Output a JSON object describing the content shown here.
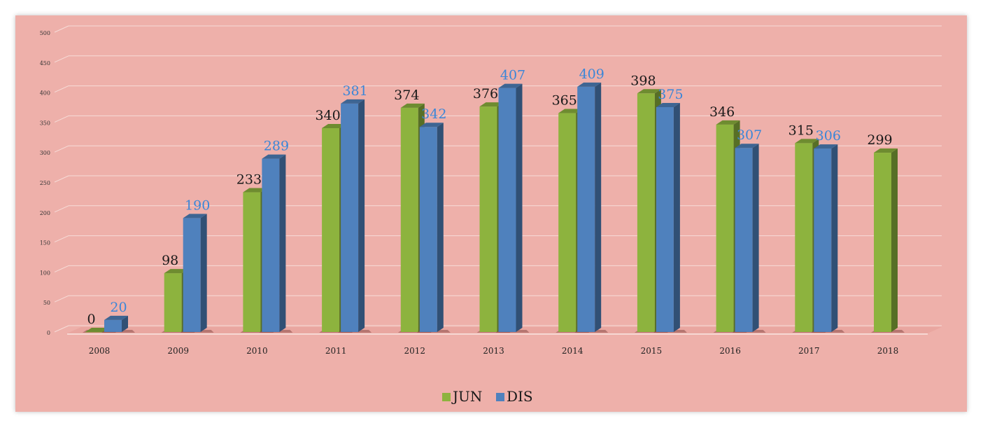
{
  "chart_data": {
    "type": "bar",
    "categories": [
      "2008",
      "2009",
      "2010",
      "2011",
      "2012",
      "2013",
      "2014",
      "2015",
      "2016",
      "2017",
      "2018"
    ],
    "series": [
      {
        "name": "JUN",
        "values": [
          0,
          98,
          233,
          340,
          374,
          376,
          365,
          398,
          346,
          315,
          299
        ],
        "color": "#8db33e"
      },
      {
        "name": "DIS",
        "values": [
          20,
          190,
          289,
          381,
          342,
          407,
          409,
          375,
          307,
          306,
          null
        ],
        "color": "#4f81bd"
      }
    ],
    "title": "",
    "xlabel": "",
    "ylabel": "",
    "ylim": [
      0,
      500
    ],
    "yticks": [
      "0",
      "50",
      "100",
      "150",
      "200",
      "250",
      "300",
      "350",
      "400",
      "450",
      "500"
    ],
    "grid": true,
    "legend": "bottom-center",
    "style": "3d-column"
  }
}
